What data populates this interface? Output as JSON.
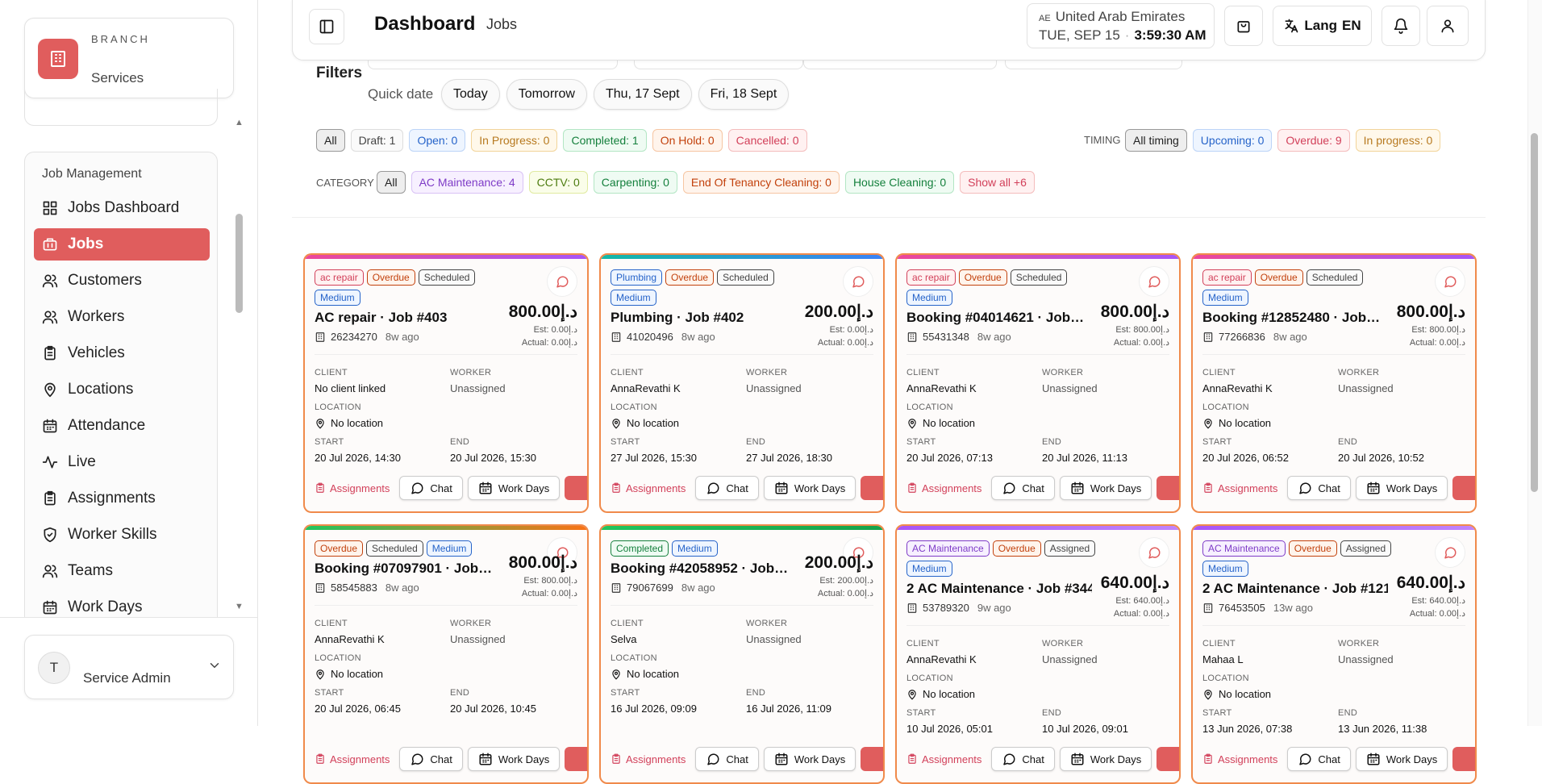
{
  "sidebar": {
    "brand": {
      "label": "BRANCH",
      "name": "Services"
    },
    "section": "Job Management",
    "nav": [
      "Jobs Dashboard",
      "Jobs",
      "Customers",
      "Workers",
      "Vehicles",
      "Locations",
      "Attendance",
      "Live",
      "Assignments",
      "Worker Skills",
      "Teams",
      "Work Days"
    ],
    "active": 1,
    "user": {
      "initial": "T",
      "name": "Service Admin"
    }
  },
  "header": {
    "title": "Dashboard",
    "crumb": "Jobs",
    "country_code": "AE",
    "country": "United Arab Emirates",
    "date": "TUE, SEP 15",
    "time": "3:59:30 AM",
    "lang": "Lang",
    "lang_code": "EN"
  },
  "filters": {
    "title": "Filters",
    "quick_label": "Quick date",
    "quick": [
      "Today",
      "Tomorrow",
      "Thu, 17 Sept",
      "Fri, 18 Sept"
    ],
    "status": [
      {
        "text": "All",
        "tone": "sel"
      },
      {
        "text": "Draft: 1",
        "tone": "gray"
      },
      {
        "text": "Open: 0",
        "tone": "blue"
      },
      {
        "text": "In Progress: 0",
        "tone": "amber"
      },
      {
        "text": "Completed: 1",
        "tone": "green"
      },
      {
        "text": "On Hold: 0",
        "tone": "orange"
      },
      {
        "text": "Cancelled: 0",
        "tone": "red"
      }
    ],
    "timing_label": "TIMING",
    "timing": [
      {
        "text": "All timing",
        "tone": "sel"
      },
      {
        "text": "Upcoming: 0",
        "tone": "blue"
      },
      {
        "text": "Overdue: 9",
        "tone": "red"
      },
      {
        "text": "In progress: 0",
        "tone": "amber"
      }
    ],
    "category_label": "CATEGORY",
    "categories": [
      {
        "text": "All",
        "tone": "sel"
      },
      {
        "text": "AC Maintenance: 4",
        "tone": "purple"
      },
      {
        "text": "CCTV: 0",
        "tone": "lime"
      },
      {
        "text": "Carpenting: 0",
        "tone": "green"
      },
      {
        "text": "End Of Tenancy Cleaning: 0",
        "tone": "orange"
      },
      {
        "text": "House Cleaning: 0",
        "tone": "green"
      },
      {
        "text": "Show all +6",
        "tone": "red"
      }
    ]
  },
  "card_labels": {
    "client": "CLIENT",
    "worker": "WORKER",
    "location": "LOCATION",
    "start": "START",
    "end": "END",
    "assignments": "Assignments",
    "chat": "Chat",
    "work_days": "Work Days"
  },
  "jobs": [
    {
      "accent": [
        "#ec4899",
        "#a855f7"
      ],
      "tags": [
        {
          "text": "ac repair",
          "tone": "red"
        },
        {
          "text": "Overdue",
          "tone": "orange"
        },
        {
          "text": "Scheduled",
          "tone": "gray"
        },
        {
          "text": "Medium",
          "tone": "blue"
        }
      ],
      "title": "AC repair · Job #403",
      "ref": "26234270",
      "ago": "8w ago",
      "amount": "800.00د.إ",
      "est": "Est: 0.00د.إ",
      "actual": "Actual: 0.00د.إ",
      "client": "No client linked",
      "worker": "Unassigned",
      "location": "No location",
      "start": "20 Jul 2026, 14:30",
      "end": "20 Jul 2026, 15:30"
    },
    {
      "accent": [
        "#14b8a6",
        "#3b82f6"
      ],
      "tags": [
        {
          "text": "Plumbing",
          "tone": "blue"
        },
        {
          "text": "Overdue",
          "tone": "orange"
        },
        {
          "text": "Scheduled",
          "tone": "gray"
        },
        {
          "text": "Medium",
          "tone": "blue"
        }
      ],
      "title": "Plumbing · Job #402",
      "ref": "41020496",
      "ago": "8w ago",
      "amount": "200.00د.إ",
      "est": "Est: 0.00د.إ",
      "actual": "Actual: 0.00د.إ",
      "client": "AnnaRevathi K",
      "worker": "Unassigned",
      "location": "No location",
      "start": "27 Jul 2026, 15:30",
      "end": "27 Jul 2026, 18:30"
    },
    {
      "accent": [
        "#ec4899",
        "#a855f7"
      ],
      "tags": [
        {
          "text": "ac repair",
          "tone": "red"
        },
        {
          "text": "Overdue",
          "tone": "orange"
        },
        {
          "text": "Scheduled",
          "tone": "gray"
        },
        {
          "text": "Medium",
          "tone": "blue"
        }
      ],
      "title": "Booking #04014621 · Job…",
      "ref": "55431348",
      "ago": "8w ago",
      "amount": "800.00د.إ",
      "est": "Est: 800.00د.إ",
      "actual": "Actual: 0.00د.إ",
      "client": "AnnaRevathi K",
      "worker": "Unassigned",
      "location": "No location",
      "start": "20 Jul 2026, 07:13",
      "end": "20 Jul 2026, 11:13"
    },
    {
      "accent": [
        "#ec4899",
        "#a855f7"
      ],
      "tags": [
        {
          "text": "ac repair",
          "tone": "red"
        },
        {
          "text": "Overdue",
          "tone": "orange"
        },
        {
          "text": "Scheduled",
          "tone": "gray"
        },
        {
          "text": "Medium",
          "tone": "blue"
        }
      ],
      "title": "Booking #12852480 · Job…",
      "ref": "77266836",
      "ago": "8w ago",
      "amount": "800.00د.إ",
      "est": "Est: 800.00د.إ",
      "actual": "Actual: 0.00د.إ",
      "client": "AnnaRevathi K",
      "worker": "Unassigned",
      "location": "No location",
      "start": "20 Jul 2026, 06:52",
      "end": "20 Jul 2026, 10:52"
    },
    {
      "accent": [
        "#22c55e",
        "#f97316"
      ],
      "tags": [
        {
          "text": "Overdue",
          "tone": "orange"
        },
        {
          "text": "Scheduled",
          "tone": "gray"
        },
        {
          "text": "Medium",
          "tone": "blue"
        }
      ],
      "title": "Booking #07097901 · Job…",
      "ref": "58545883",
      "ago": "8w ago",
      "amount": "800.00د.إ",
      "est": "Est: 800.00د.إ",
      "actual": "Actual: 0.00د.إ",
      "client": "AnnaRevathi K",
      "worker": "Unassigned",
      "location": "No location",
      "start": "20 Jul 2026, 06:45",
      "end": "20 Jul 2026, 10:45"
    },
    {
      "accent": [
        "#22c55e",
        "#16a34a"
      ],
      "tags": [
        {
          "text": "Completed",
          "tone": "green"
        },
        {
          "text": "Medium",
          "tone": "blue"
        }
      ],
      "title": "Booking #42058952 · Job…",
      "ref": "79067699",
      "ago": "8w ago",
      "amount": "200.00د.إ",
      "est": "Est: 200.00د.إ",
      "actual": "Actual: 0.00د.إ",
      "client": "Selva",
      "worker": "Unassigned",
      "location": "No location",
      "start": "16 Jul 2026, 09:09",
      "end": "16 Jul 2026, 11:09"
    },
    {
      "accent": [
        "#a855f7",
        "#c084fc"
      ],
      "tags": [
        {
          "text": "AC Maintenance",
          "tone": "purple"
        },
        {
          "text": "Overdue",
          "tone": "orange"
        },
        {
          "text": "Assigned",
          "tone": "gray"
        },
        {
          "text": "Medium",
          "tone": "blue"
        }
      ],
      "title": "2 AC Maintenance · Job #344",
      "ref": "53789320",
      "ago": "9w ago",
      "amount": "640.00د.إ",
      "est": "Est: 640.00د.إ",
      "actual": "Actual: 0.00د.إ",
      "client": "AnnaRevathi K",
      "worker": "Unassigned",
      "location": "No location",
      "start": "10 Jul 2026, 05:01",
      "end": "10 Jul 2026, 09:01"
    },
    {
      "accent": [
        "#a855f7",
        "#c084fc"
      ],
      "tags": [
        {
          "text": "AC Maintenance",
          "tone": "purple"
        },
        {
          "text": "Overdue",
          "tone": "orange"
        },
        {
          "text": "Assigned",
          "tone": "gray"
        },
        {
          "text": "Medium",
          "tone": "blue"
        }
      ],
      "title": "2 AC Maintenance · Job #121",
      "ref": "76453505",
      "ago": "13w ago",
      "amount": "640.00د.إ",
      "est": "Est: 640.00د.إ",
      "actual": "Actual: 0.00د.إ",
      "client": "Mahaa L",
      "worker": "Unassigned",
      "location": "No location",
      "start": "13 Jun 2026, 07:38",
      "end": "13 Jun 2026, 11:38"
    }
  ]
}
